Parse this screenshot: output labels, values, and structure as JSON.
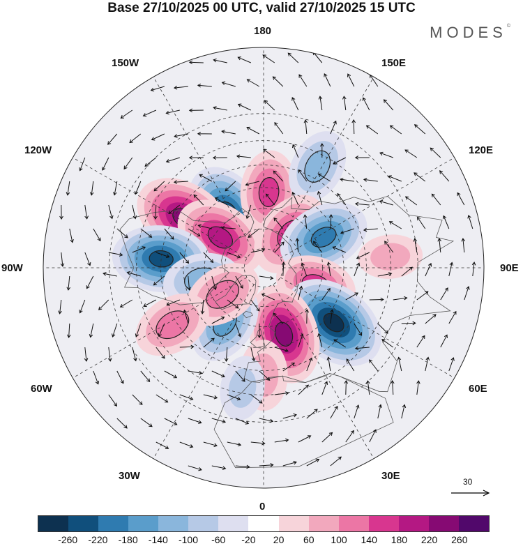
{
  "title": "Base 27/10/2025 00 UTC, valid 27/10/2025 15 UTC",
  "brand": "MODES",
  "brand_mark": "©",
  "longitude_labels": {
    "top": "180",
    "bottom": "0",
    "left": "90W",
    "right": "90E",
    "upper_left": "150W",
    "upper_right": "150E",
    "mid_upper_left": "120W",
    "mid_upper_right": "120E",
    "mid_lower_left": "60W",
    "mid_lower_right": "60E",
    "lower_left": "30W",
    "lower_right": "30E"
  },
  "vector_reference": "30",
  "colorbar": {
    "colors": [
      "#0d3150",
      "#104f7c",
      "#2f7bb0",
      "#5a9dcb",
      "#8ab6dc",
      "#b6c9e6",
      "#dedff0",
      "#ffffff",
      "#f7d4da",
      "#f2a8bd",
      "#ec76a5",
      "#d8368f",
      "#b41883",
      "#860a73",
      "#51086b"
    ],
    "ticks": [
      "-260",
      "-220",
      "-180",
      "-140",
      "-100",
      "-60",
      "-20",
      "20",
      "60",
      "100",
      "140",
      "180",
      "220",
      "260"
    ]
  },
  "anomaly_centers": [
    {
      "lon": -147,
      "lat": 57,
      "value": -230
    },
    {
      "lon": 176,
      "lat": 52,
      "value": 150
    },
    {
      "lon": -122,
      "lat": 44,
      "value": 240
    },
    {
      "lon": -125,
      "lat": 63,
      "value": 200
    },
    {
      "lon": -95,
      "lat": 40,
      "value": -220
    },
    {
      "lon": -79,
      "lat": 58,
      "value": -120
    },
    {
      "lon": 152,
      "lat": 35,
      "value": -110
    },
    {
      "lon": 142,
      "lat": 68,
      "value": 170
    },
    {
      "lon": 117,
      "lat": 56,
      "value": -190
    },
    {
      "lon": 72,
      "lat": 62,
      "value": 140
    },
    {
      "lon": 52,
      "lat": 46,
      "value": -260
    },
    {
      "lon": 17,
      "lat": 55,
      "value": 230
    },
    {
      "lon": -35,
      "lat": 56,
      "value": -150
    },
    {
      "lon": -57,
      "lat": 65,
      "value": 130
    },
    {
      "lon": -58,
      "lat": 38,
      "value": 130
    },
    {
      "lon": 0,
      "lat": 38,
      "value": 90
    },
    {
      "lon": 95,
      "lat": 30,
      "value": 60
    },
    {
      "lon": -10,
      "lat": 32,
      "value": -60
    }
  ]
}
